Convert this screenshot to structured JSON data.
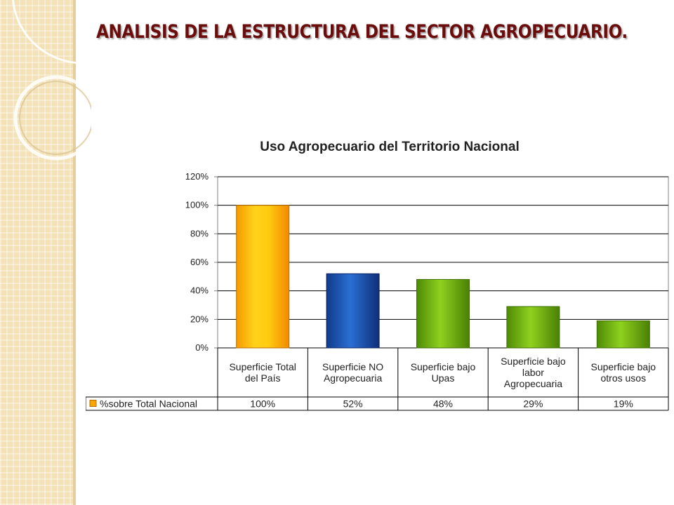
{
  "slide": {
    "title": "ANALISIS  DE LA ESTRUCTURA DEL SECTOR AGROPECUARIO."
  },
  "colors": {
    "title": "#6b0d0d",
    "orange": "#f7a800",
    "blue": "#1a4fb5",
    "green": "#6cae10",
    "panel": "#f3e2b8"
  },
  "chart_data": {
    "type": "bar",
    "title": "Uso Agropecuario del Territorio Nacional",
    "categories": [
      [
        "Superficie Total",
        "del País"
      ],
      [
        "Superficie NO",
        "Agropecuaria"
      ],
      [
        "Superficie bajo",
        "Upas"
      ],
      [
        "Superficie bajo",
        "labor",
        "Agropecuaria"
      ],
      [
        "Superficie bajo",
        "otros usos"
      ]
    ],
    "series": [
      {
        "name": "%sobre Total Nacional",
        "values": [
          100,
          52,
          48,
          29,
          19
        ],
        "labels": [
          "100%",
          "52%",
          "48%",
          "29%",
          "19%"
        ]
      }
    ],
    "bar_colors": [
      "orange",
      "blue",
      "green",
      "green",
      "green"
    ],
    "ylim": [
      0,
      120
    ],
    "yticks": [
      "0%",
      "20%",
      "40%",
      "60%",
      "80%",
      "100%",
      "120%"
    ],
    "grid": true,
    "data_table": true,
    "legend": "data table"
  }
}
